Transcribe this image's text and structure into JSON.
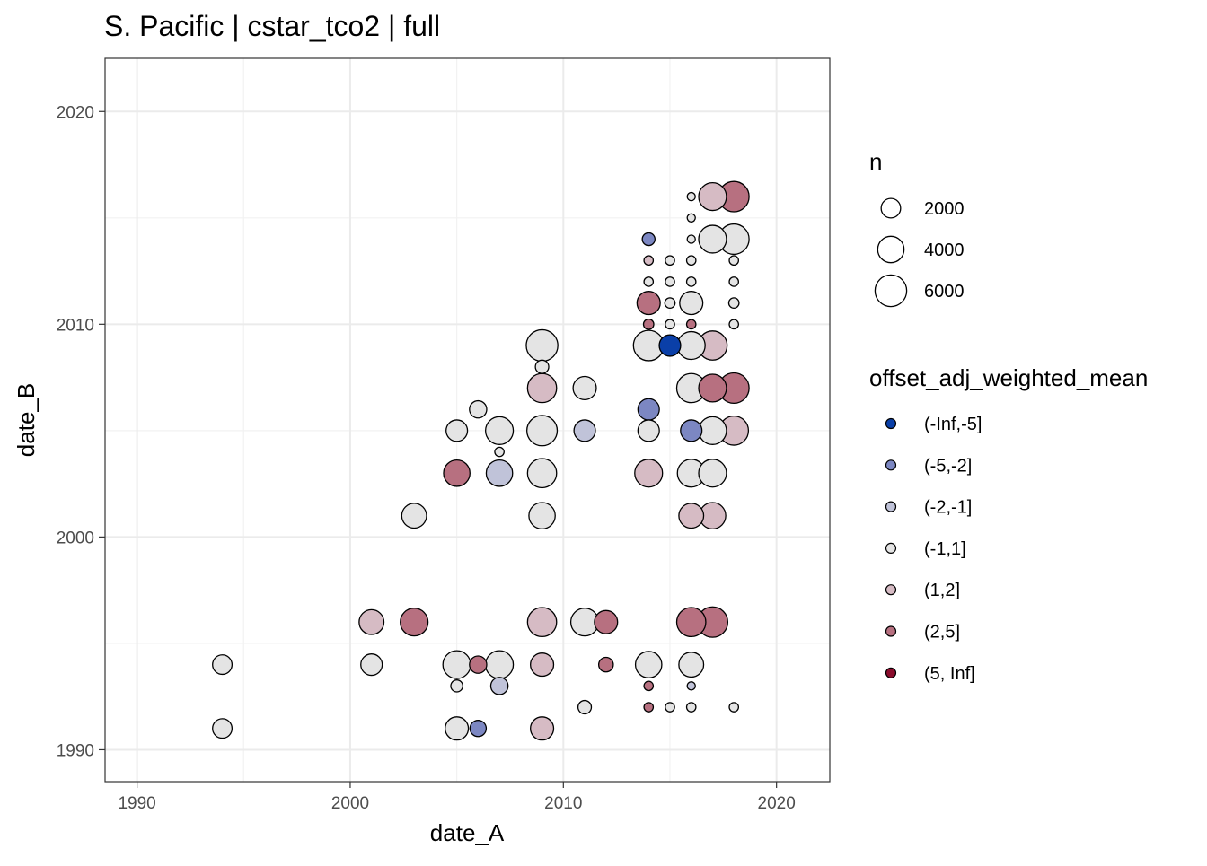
{
  "chart_data": {
    "type": "scatter",
    "title": "S. Pacific | cstar_tco2 | full",
    "xlabel": "date_A",
    "ylabel": "date_B",
    "xlim": [
      1988.5,
      2022.5
    ],
    "ylim": [
      1988.5,
      2022.5
    ],
    "xticks": [
      1990,
      2000,
      2010,
      2020
    ],
    "yticks": [
      1990,
      2000,
      2010,
      2020
    ],
    "grid": true,
    "size_legend": {
      "title": "n",
      "entries": [
        {
          "label": "2000",
          "value": 2000
        },
        {
          "label": "4000",
          "value": 4000
        },
        {
          "label": "6000",
          "value": 6000
        }
      ]
    },
    "color_legend": {
      "title": "offset_adj_weighted_mean",
      "entries": [
        {
          "label": "(-Inf,-5]",
          "color": "#0a3fa8"
        },
        {
          "label": "(-5,-2]",
          "color": "#7c87c2"
        },
        {
          "label": "(-2,-1]",
          "color": "#c0c3d9"
        },
        {
          "label": "(-1,1]",
          "color": "#e4e4e4"
        },
        {
          "label": "(1,2]",
          "color": "#d6bbc4"
        },
        {
          "label": "(2,5]",
          "color": "#b77080"
        },
        {
          "label": "(5, Inf]",
          "color": "#8a0c2c"
        }
      ]
    },
    "points": [
      {
        "x": 1994,
        "y": 1994,
        "n": 2000,
        "cat": "(-1,1]"
      },
      {
        "x": 1994,
        "y": 1991,
        "n": 2000,
        "cat": "(-1,1]"
      },
      {
        "x": 2001,
        "y": 1996,
        "n": 3500,
        "cat": "(1,2]"
      },
      {
        "x": 2001,
        "y": 1994,
        "n": 2500,
        "cat": "(-1,1]"
      },
      {
        "x": 2003,
        "y": 2001,
        "n": 3500,
        "cat": "(-1,1]"
      },
      {
        "x": 2003,
        "y": 1996,
        "n": 4500,
        "cat": "(2,5]"
      },
      {
        "x": 2005,
        "y": 2003,
        "n": 4000,
        "cat": "(2,5]"
      },
      {
        "x": 2005,
        "y": 1994,
        "n": 4500,
        "cat": "(-1,1]"
      },
      {
        "x": 2005,
        "y": 1993,
        "n": 600,
        "cat": "(-1,1]"
      },
      {
        "x": 2005,
        "y": 1991,
        "n": 3000,
        "cat": "(-1,1]"
      },
      {
        "x": 2005,
        "y": 2005,
        "n": 2500,
        "cat": "(-1,1]"
      },
      {
        "x": 2006,
        "y": 2006,
        "n": 1500,
        "cat": "(-1,1]"
      },
      {
        "x": 2006,
        "y": 1994,
        "n": 1500,
        "cat": "(2,5]"
      },
      {
        "x": 2006,
        "y": 1991,
        "n": 1300,
        "cat": "(-5,-2]"
      },
      {
        "x": 2007,
        "y": 2005,
        "n": 4500,
        "cat": "(-1,1]"
      },
      {
        "x": 2007,
        "y": 2004,
        "n": 300,
        "cat": "(-1,1]"
      },
      {
        "x": 2007,
        "y": 2003,
        "n": 4000,
        "cat": "(-2,-1]"
      },
      {
        "x": 2007,
        "y": 1994,
        "n": 4500,
        "cat": "(-1,1]"
      },
      {
        "x": 2007,
        "y": 1993,
        "n": 1500,
        "cat": "(-2,-1]"
      },
      {
        "x": 2009,
        "y": 2009,
        "n": 6000,
        "cat": "(-1,1]"
      },
      {
        "x": 2009,
        "y": 2008,
        "n": 800,
        "cat": "(-1,1]"
      },
      {
        "x": 2009,
        "y": 2007,
        "n": 5000,
        "cat": "(1,2]"
      },
      {
        "x": 2009,
        "y": 2005,
        "n": 5500,
        "cat": "(-1,1]"
      },
      {
        "x": 2009,
        "y": 2003,
        "n": 5000,
        "cat": "(-1,1]"
      },
      {
        "x": 2009,
        "y": 2001,
        "n": 4000,
        "cat": "(-1,1]"
      },
      {
        "x": 2009,
        "y": 1996,
        "n": 5000,
        "cat": "(1,2]"
      },
      {
        "x": 2009,
        "y": 1994,
        "n": 3000,
        "cat": "(1,2]"
      },
      {
        "x": 2009,
        "y": 1991,
        "n": 3000,
        "cat": "(1,2]"
      },
      {
        "x": 2011,
        "y": 2007,
        "n": 3000,
        "cat": "(-1,1]"
      },
      {
        "x": 2011,
        "y": 2005,
        "n": 2500,
        "cat": "(-2,-1]"
      },
      {
        "x": 2011,
        "y": 1996,
        "n": 4500,
        "cat": "(-1,1]"
      },
      {
        "x": 2011,
        "y": 1992,
        "n": 800,
        "cat": "(-1,1]"
      },
      {
        "x": 2012,
        "y": 1996,
        "n": 3000,
        "cat": "(2,5]"
      },
      {
        "x": 2012,
        "y": 1994,
        "n": 1000,
        "cat": "(2,5]"
      },
      {
        "x": 2014,
        "y": 2014,
        "n": 700,
        "cat": "(-5,-2]"
      },
      {
        "x": 2014,
        "y": 2013,
        "n": 300,
        "cat": "(1,2]"
      },
      {
        "x": 2014,
        "y": 2012,
        "n": 300,
        "cat": "(-1,1]"
      },
      {
        "x": 2014,
        "y": 2011,
        "n": 3000,
        "cat": "(2,5]"
      },
      {
        "x": 2014,
        "y": 2010,
        "n": 400,
        "cat": "(2,5]"
      },
      {
        "x": 2014,
        "y": 2009,
        "n": 5500,
        "cat": "(-1,1]"
      },
      {
        "x": 2014,
        "y": 2006,
        "n": 2500,
        "cat": "(-5,-2]"
      },
      {
        "x": 2014,
        "y": 2005,
        "n": 2500,
        "cat": "(-1,1]"
      },
      {
        "x": 2014,
        "y": 2003,
        "n": 4500,
        "cat": "(1,2]"
      },
      {
        "x": 2014,
        "y": 1994,
        "n": 4000,
        "cat": "(-1,1]"
      },
      {
        "x": 2014,
        "y": 1993,
        "n": 300,
        "cat": "(2,5]"
      },
      {
        "x": 2014,
        "y": 1992,
        "n": 300,
        "cat": "(2,5]"
      },
      {
        "x": 2015,
        "y": 2013,
        "n": 300,
        "cat": "(-1,1]"
      },
      {
        "x": 2015,
        "y": 2012,
        "n": 300,
        "cat": "(-1,1]"
      },
      {
        "x": 2015,
        "y": 2011,
        "n": 400,
        "cat": "(-1,1]"
      },
      {
        "x": 2015,
        "y": 2010,
        "n": 300,
        "cat": "(-1,1]"
      },
      {
        "x": 2015,
        "y": 2009,
        "n": 2500,
        "cat": "(-Inf,-5]"
      },
      {
        "x": 2015,
        "y": 1992,
        "n": 300,
        "cat": "(-1,1]"
      },
      {
        "x": 2016,
        "y": 2016,
        "n": 200,
        "cat": "(-1,1]"
      },
      {
        "x": 2016,
        "y": 2015,
        "n": 200,
        "cat": "(-1,1]"
      },
      {
        "x": 2016,
        "y": 2014,
        "n": 200,
        "cat": "(-1,1]"
      },
      {
        "x": 2016,
        "y": 2013,
        "n": 300,
        "cat": "(-1,1]"
      },
      {
        "x": 2016,
        "y": 2012,
        "n": 300,
        "cat": "(-1,1]"
      },
      {
        "x": 2016,
        "y": 2011,
        "n": 3000,
        "cat": "(-1,1]"
      },
      {
        "x": 2016,
        "y": 2010,
        "n": 300,
        "cat": "(2,5]"
      },
      {
        "x": 2016,
        "y": 2009,
        "n": 4500,
        "cat": "(-1,1]"
      },
      {
        "x": 2016,
        "y": 2007,
        "n": 5000,
        "cat": "(-1,1]"
      },
      {
        "x": 2016,
        "y": 2005,
        "n": 2500,
        "cat": "(-5,-2]"
      },
      {
        "x": 2016,
        "y": 2003,
        "n": 4500,
        "cat": "(-1,1]"
      },
      {
        "x": 2016,
        "y": 2001,
        "n": 3500,
        "cat": "(1,2]"
      },
      {
        "x": 2016,
        "y": 1996,
        "n": 5000,
        "cat": "(2,5]"
      },
      {
        "x": 2016,
        "y": 1994,
        "n": 3500,
        "cat": "(-1,1]"
      },
      {
        "x": 2016,
        "y": 1993,
        "n": 200,
        "cat": "(-2,-1]"
      },
      {
        "x": 2016,
        "y": 1992,
        "n": 300,
        "cat": "(-1,1]"
      },
      {
        "x": 2017,
        "y": 2016,
        "n": 4500,
        "cat": "(1,2]"
      },
      {
        "x": 2017,
        "y": 2014,
        "n": 4500,
        "cat": "(-1,1]"
      },
      {
        "x": 2017,
        "y": 2009,
        "n": 5000,
        "cat": "(1,2]"
      },
      {
        "x": 2017,
        "y": 2007,
        "n": 4500,
        "cat": "(2,5]"
      },
      {
        "x": 2017,
        "y": 2005,
        "n": 4500,
        "cat": "(-1,1]"
      },
      {
        "x": 2017,
        "y": 2003,
        "n": 4500,
        "cat": "(-1,1]"
      },
      {
        "x": 2017,
        "y": 2001,
        "n": 4000,
        "cat": "(1,2]"
      },
      {
        "x": 2017,
        "y": 1996,
        "n": 5500,
        "cat": "(2,5]"
      },
      {
        "x": 2018,
        "y": 2016,
        "n": 5500,
        "cat": "(2,5]"
      },
      {
        "x": 2018,
        "y": 2014,
        "n": 5500,
        "cat": "(-1,1]"
      },
      {
        "x": 2018,
        "y": 2013,
        "n": 300,
        "cat": "(-1,1]"
      },
      {
        "x": 2018,
        "y": 2012,
        "n": 300,
        "cat": "(-1,1]"
      },
      {
        "x": 2018,
        "y": 2011,
        "n": 400,
        "cat": "(-1,1]"
      },
      {
        "x": 2018,
        "y": 2010,
        "n": 300,
        "cat": "(-1,1]"
      },
      {
        "x": 2018,
        "y": 2007,
        "n": 5500,
        "cat": "(2,5]"
      },
      {
        "x": 2018,
        "y": 2005,
        "n": 5000,
        "cat": "(1,2]"
      },
      {
        "x": 2018,
        "y": 1992,
        "n": 300,
        "cat": "(-1,1]"
      }
    ]
  }
}
